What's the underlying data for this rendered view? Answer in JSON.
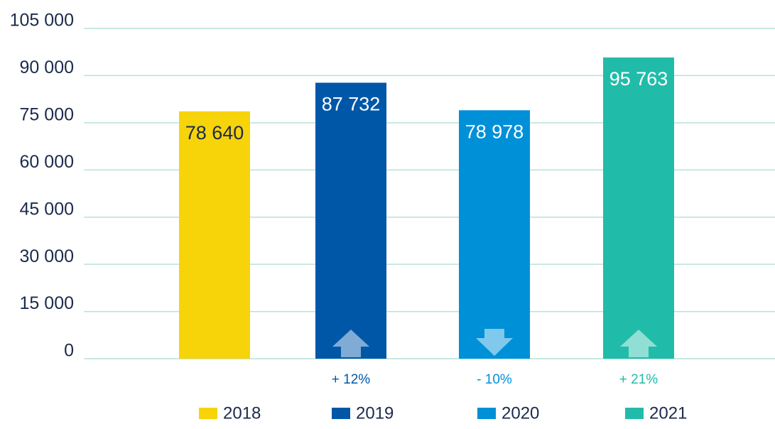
{
  "chart_data": {
    "type": "bar",
    "categories": [
      "2018",
      "2019",
      "2020",
      "2021"
    ],
    "values": [
      78640,
      87732,
      78978,
      95763
    ],
    "value_labels": [
      "78 640",
      "87 732",
      "78 978",
      "95 763"
    ],
    "colors": [
      "#f7d30a",
      "#0057a8",
      "#0090d8",
      "#21bca9"
    ],
    "value_label_colors": [
      "#1b2b4b",
      "#ffffff",
      "#ffffff",
      "#ffffff"
    ],
    "ylim": [
      0,
      105000
    ],
    "yticks": [
      0,
      {
        "value": 15000,
        "label": "15 000"
      },
      {
        "value": 30000,
        "label": "30 000"
      },
      {
        "value": 45000,
        "label": "45 000"
      },
      {
        "value": 60000,
        "label": "60 000"
      },
      {
        "value": 75000,
        "label": "75 000"
      },
      {
        "value": 90000,
        "label": "90 000"
      },
      {
        "value": 105000,
        "label": "105 000"
      }
    ],
    "grid": true,
    "annotations": [
      {
        "category": "2019",
        "text": "+ 12%",
        "direction": "up"
      },
      {
        "category": "2020",
        "text": "- 10%",
        "direction": "down"
      },
      {
        "category": "2021",
        "text": "+ 21%",
        "direction": "up"
      }
    ],
    "legend": "bottom"
  }
}
